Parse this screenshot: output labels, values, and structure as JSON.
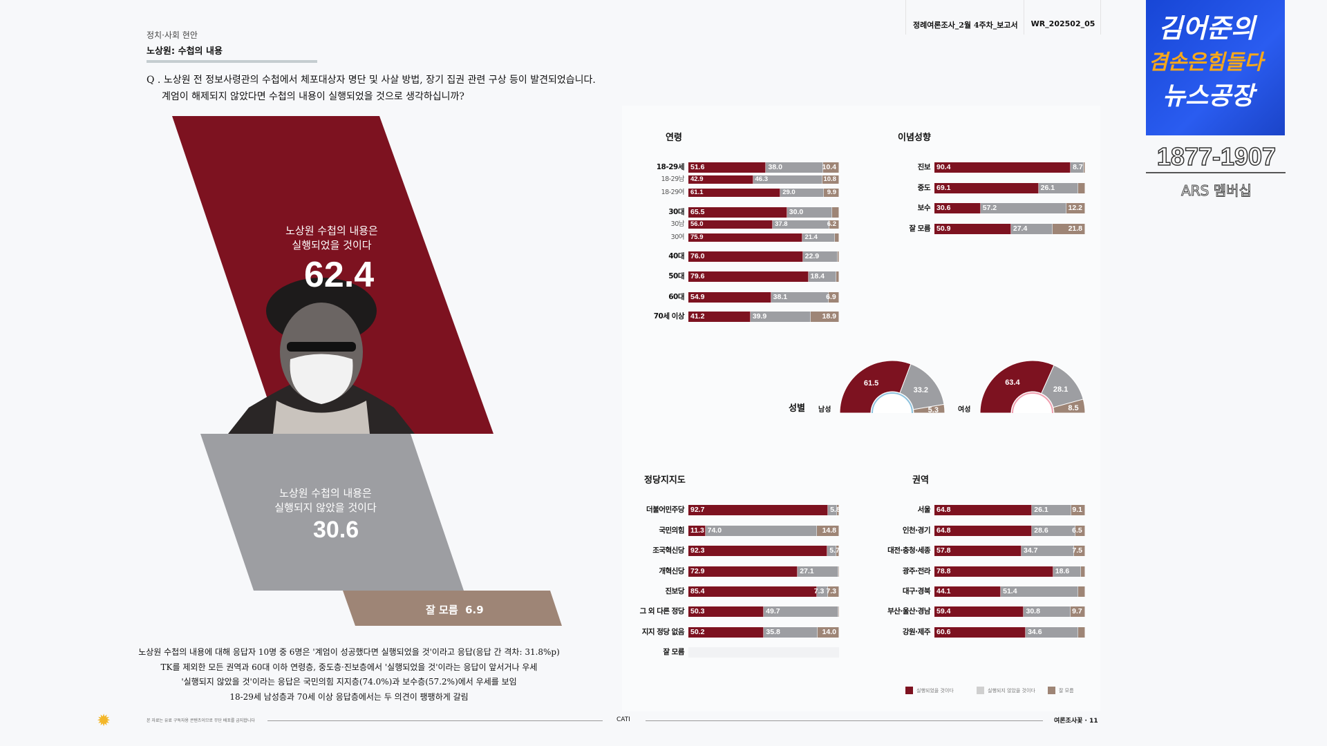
{
  "header": {
    "category": "정치·사회 현안",
    "title": "노상원: 수첩의 내용",
    "report_name": "정례여론조사_2월 4주차_보고서",
    "report_code": "WR_202502_05"
  },
  "question": {
    "line1": "Q . 노상원 전 정보사령관의 수첩에서 체포대상자 명단 및 사살 방법, 장기 집권 관련 구상 등이 발견되었습니다.",
    "line2": "계엄이 해제되지 않았다면 수첩의 내용이 실행되었을 것으로 생각하십니까?"
  },
  "overall": {
    "yes": {
      "label1": "노상원 수첩의 내용은",
      "label2": "실행되었을 것이다",
      "value": "62.4"
    },
    "no": {
      "label1": "노상원 수첩의 내용은",
      "label2": "실행되지 않았을 것이다",
      "value": "30.6"
    },
    "dk": {
      "label": "잘 모름",
      "value": "6.9"
    }
  },
  "summary": [
    "노상원 수첩의 내용에 대해 응답자 10명 중 6명은 '계엄이 성공했다면 실행되었을 것'이라고 응답(응답 간 격차: 31.8%p)",
    "TK를 제외한 모든 권역과 60대 이하 연령층, 중도층·진보층에서 '실행되었을 것'이라는 응답이 앞서거나 우세",
    "'실행되지 않았을 것'이라는 응답은 국민의힘 지지층(74.0%)과 보수층(57.2%)에서 우세를 보임",
    "18-29세 남성층과 70세 이상 응답층에서는 두 의견이 팽팽하게 갈림"
  ],
  "footer": {
    "notice": "본 자료는 유료 구독자용 콘텐츠이므로 무단 배포를 금지합니다",
    "method": "CATI",
    "page": "여론조사꽃 · 11"
  },
  "colors": {
    "yes": "#7d1220",
    "no": "#9d9ea2",
    "dk": "#9e8576"
  },
  "chart_data": [
    {
      "type": "bar",
      "title": "연령",
      "stacked": true,
      "rows": [
        {
          "label": "18-29세",
          "values": [
            51.6,
            38.0,
            10.4
          ]
        },
        {
          "label": "18-29남",
          "sub": true,
          "values": [
            42.9,
            46.3,
            10.8
          ]
        },
        {
          "label": "18-29여",
          "sub": true,
          "values": [
            61.1,
            29.0,
            9.9
          ]
        },
        {
          "label": "30대",
          "values": [
            65.5,
            30.0,
            null
          ]
        },
        {
          "label": "30남",
          "sub": true,
          "values": [
            56.0,
            37.8,
            6.2
          ]
        },
        {
          "label": "30여",
          "sub": true,
          "values": [
            75.9,
            21.4,
            null
          ]
        },
        {
          "label": "40대",
          "values": [
            76.0,
            22.9,
            null
          ]
        },
        {
          "label": "50대",
          "values": [
            79.6,
            18.4,
            null
          ]
        },
        {
          "label": "60대",
          "values": [
            54.9,
            38.1,
            6.9
          ]
        },
        {
          "label": "70세 이상",
          "values": [
            41.2,
            39.9,
            18.9
          ]
        }
      ]
    },
    {
      "type": "bar",
      "title": "이념성향",
      "stacked": true,
      "rows": [
        {
          "label": "진보",
          "values": [
            90.4,
            8.7,
            null
          ]
        },
        {
          "label": "중도",
          "values": [
            69.1,
            26.1,
            null
          ]
        },
        {
          "label": "보수",
          "values": [
            30.6,
            57.2,
            12.2
          ]
        },
        {
          "label": "잘 모름",
          "values": [
            50.9,
            27.4,
            21.8
          ]
        }
      ]
    },
    {
      "type": "pie",
      "title": "성별",
      "half_donut": true,
      "groups": [
        {
          "label": "남성",
          "values": [
            61.5,
            33.2,
            5.3
          ]
        },
        {
          "label": "여성",
          "values": [
            63.4,
            28.1,
            8.5
          ]
        }
      ]
    },
    {
      "type": "bar",
      "title": "정당지지도",
      "stacked": true,
      "rows": [
        {
          "label": "더불어민주당",
          "values": [
            92.7,
            5.8,
            null
          ]
        },
        {
          "label": "국민의힘",
          "values": [
            11.3,
            74.0,
            14.8
          ]
        },
        {
          "label": "조국혁신당",
          "values": [
            92.3,
            5.7,
            null
          ]
        },
        {
          "label": "개혁신당",
          "values": [
            72.9,
            27.1,
            null
          ]
        },
        {
          "label": "진보당",
          "values": [
            85.4,
            7.3,
            7.3
          ]
        },
        {
          "label": "그 외 다른 정당",
          "values": [
            50.3,
            49.7,
            null
          ]
        },
        {
          "label": "지지 정당 없음",
          "values": [
            50.2,
            35.8,
            14.0
          ]
        },
        {
          "label": "잘 모름",
          "values": [],
          "empty": true
        }
      ]
    },
    {
      "type": "bar",
      "title": "권역",
      "stacked": true,
      "rows": [
        {
          "label": "서울",
          "values": [
            64.8,
            26.1,
            9.1
          ]
        },
        {
          "label": "인천·경기",
          "values": [
            64.8,
            28.6,
            6.5
          ]
        },
        {
          "label": "대전·충청·세종",
          "values": [
            57.8,
            34.7,
            7.5
          ]
        },
        {
          "label": "광주·전라",
          "values": [
            78.8,
            18.6,
            null
          ]
        },
        {
          "label": "대구·경북",
          "values": [
            44.1,
            51.4,
            null
          ]
        },
        {
          "label": "부산·울산·경남",
          "values": [
            59.4,
            30.8,
            9.7
          ]
        },
        {
          "label": "강원·제주",
          "values": [
            60.6,
            34.6,
            null
          ]
        }
      ]
    }
  ],
  "legend": [
    "실행되었을 것이다",
    "실행되지 않았을 것이다",
    "잘 모름"
  ],
  "logo": {
    "line1": "김어준의",
    "line2": "겸손은힘들다",
    "line3": "뉴스공장",
    "phone": "1877-1907",
    "membership": "ARS 멤버십"
  }
}
